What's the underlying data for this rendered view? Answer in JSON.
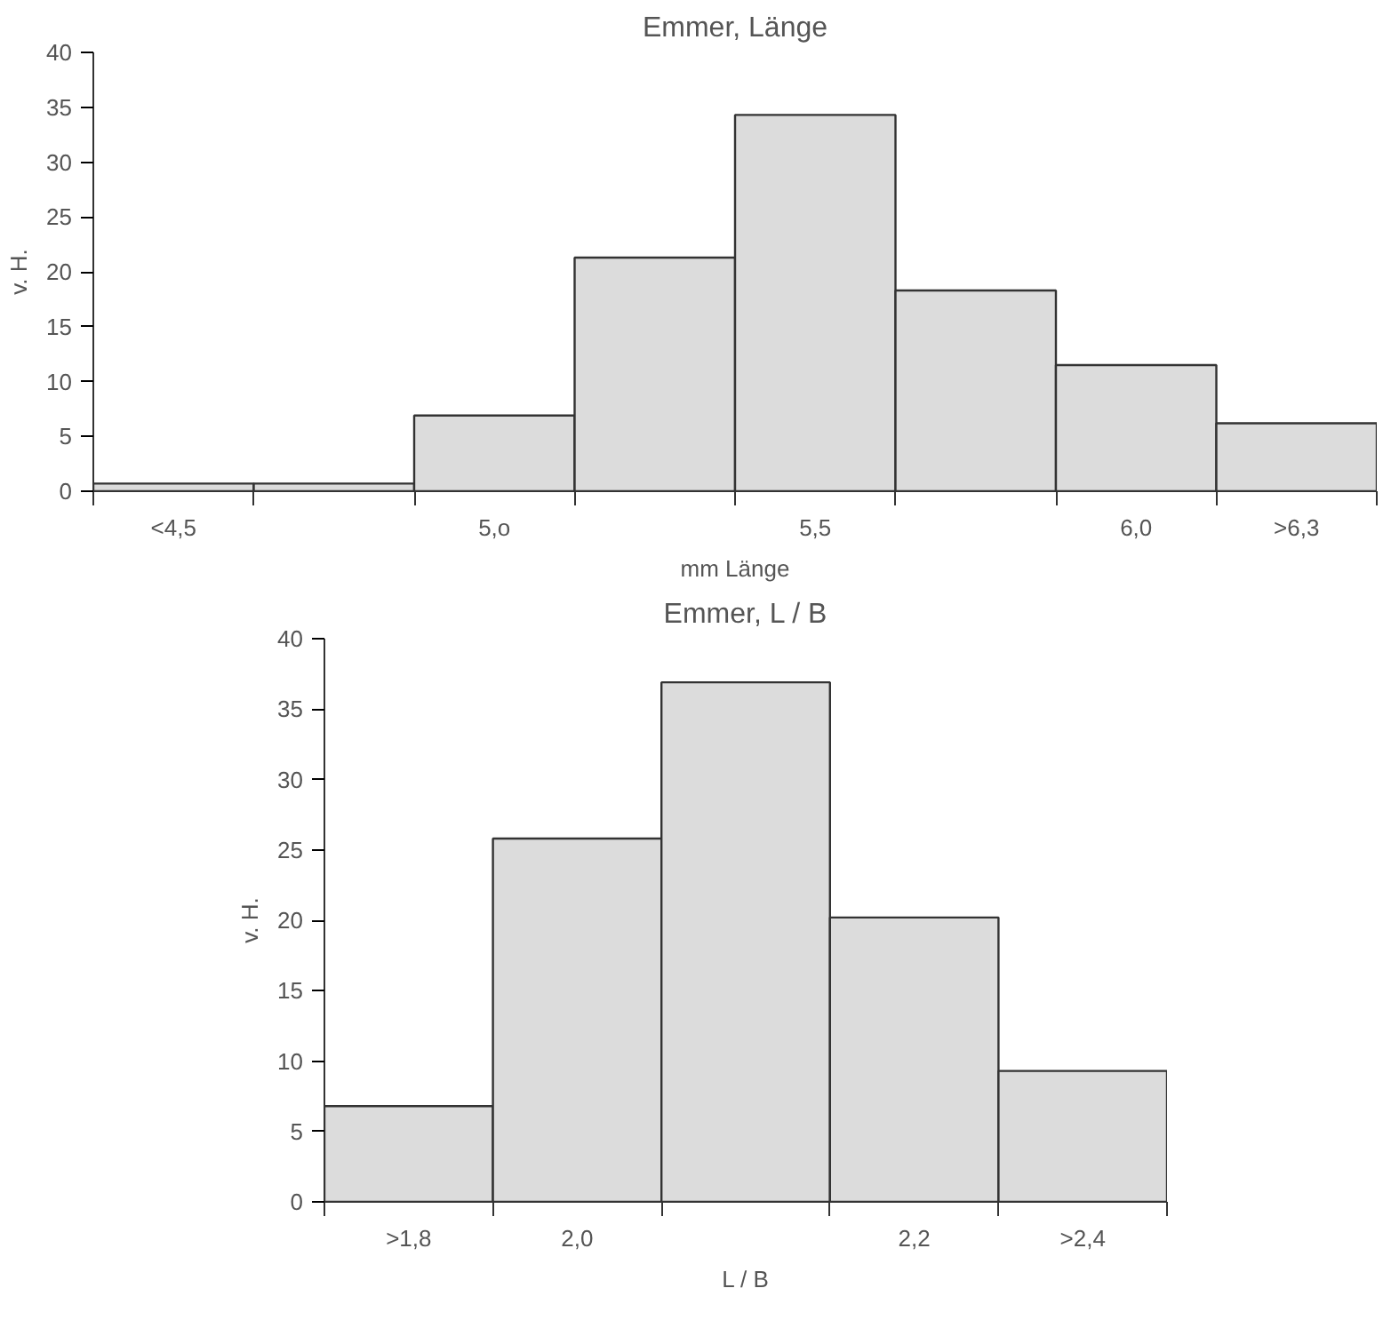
{
  "chart_data": [
    {
      "type": "bar",
      "title": "Emmer, Länge",
      "xlabel": "mm Länge",
      "ylabel": "v. H.",
      "categories": [
        "<4,5",
        null,
        "5,o",
        null,
        "5,5",
        null,
        "6,0",
        ">6,3"
      ],
      "values": [
        0.7,
        0.7,
        6.9,
        21.3,
        34.3,
        18.3,
        11.5,
        6.2
      ],
      "color": "#dcdcdc",
      "ylim": [
        0,
        40
      ],
      "yticks": [
        0,
        5,
        10,
        15,
        20,
        25,
        30,
        35,
        40
      ],
      "grid": false
    },
    {
      "type": "bar",
      "title": "Emmer, L / B",
      "xlabel": "L / B",
      "ylabel": "v. H.",
      "categories": [
        ">1,8",
        "2,0",
        null,
        "2,2",
        ">2,4"
      ],
      "values": [
        6.8,
        25.8,
        36.9,
        20.2,
        9.3
      ],
      "color": "#dcdcdc",
      "ylim": [
        0,
        40
      ],
      "yticks": [
        0,
        5,
        10,
        15,
        20,
        25,
        30,
        35,
        40
      ],
      "grid": false
    }
  ]
}
